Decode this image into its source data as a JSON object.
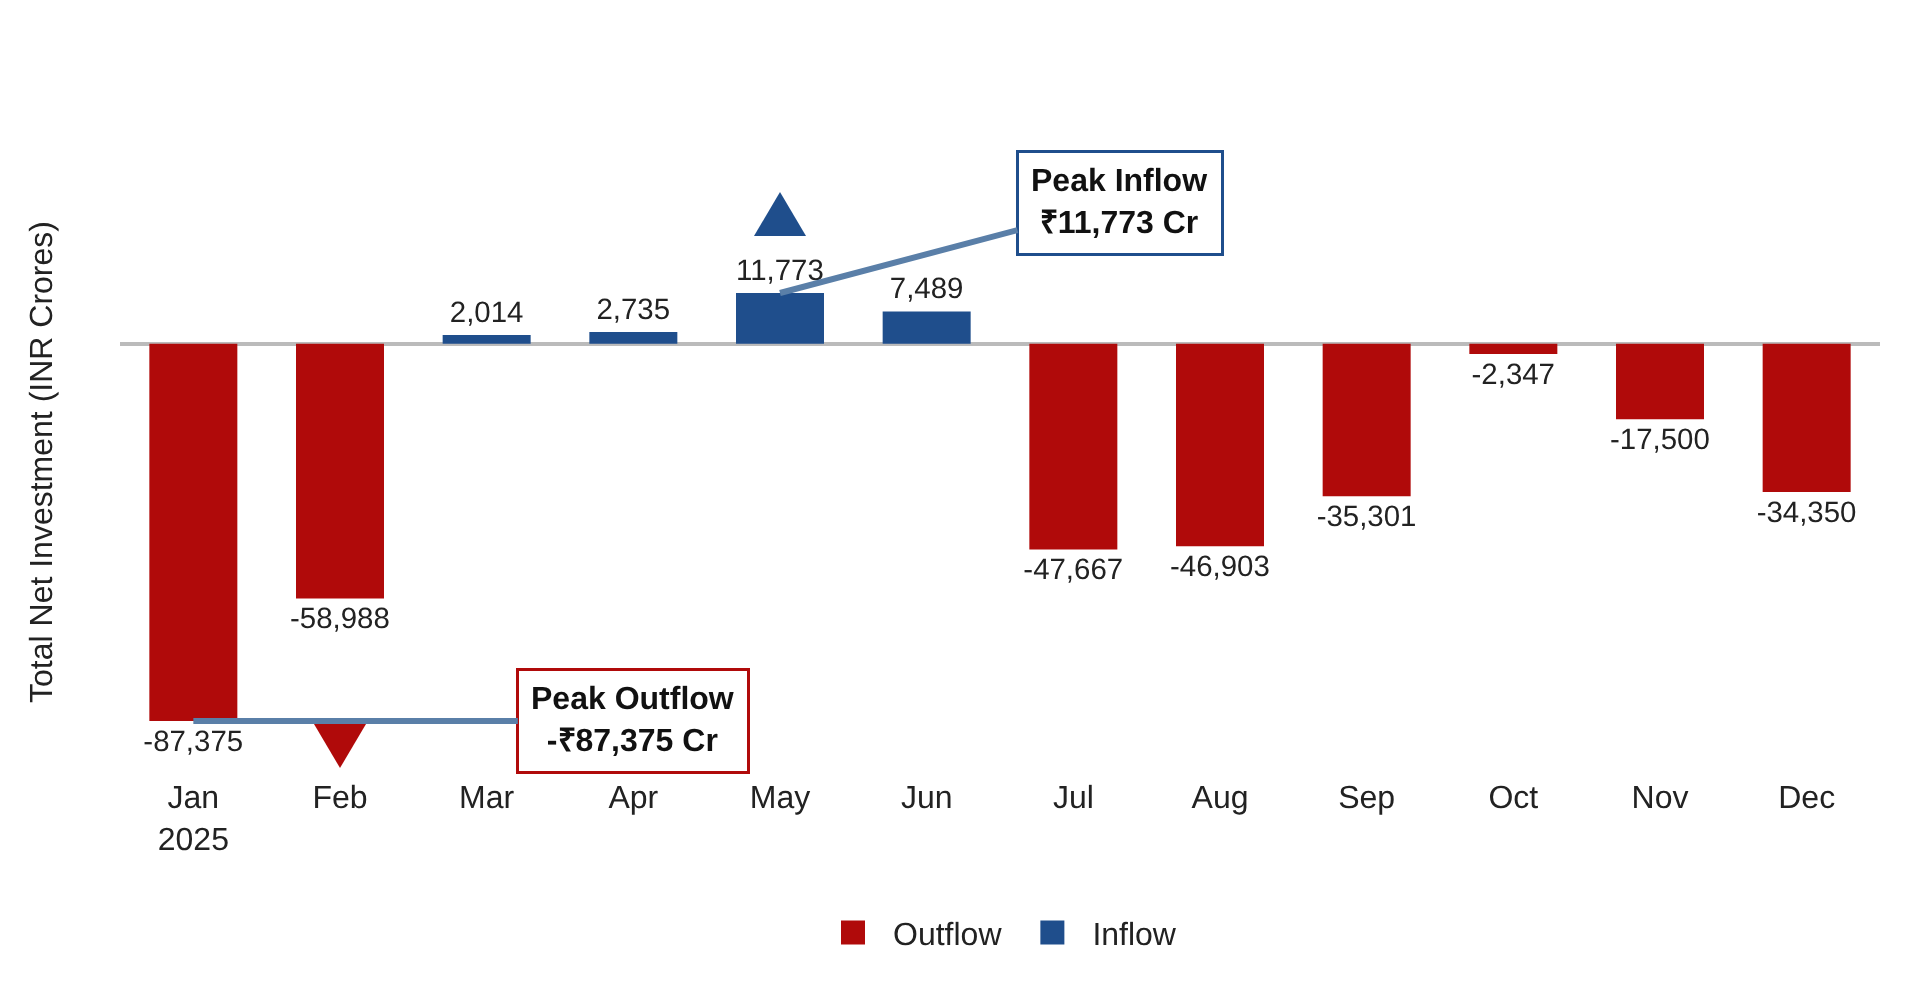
{
  "chart_data": {
    "type": "bar",
    "ylabel": "Total Net Investment (INR Crores)",
    "categories": [
      "Jan\n2025",
      "Feb",
      "Mar",
      "Apr",
      "May",
      "Jun",
      "Jul",
      "Aug",
      "Sep",
      "Oct",
      "Nov",
      "Dec"
    ],
    "series": [
      {
        "name": "Outflow",
        "color": "#b00a0a",
        "values": [
          -87375,
          -58988,
          null,
          null,
          null,
          null,
          -47667,
          -46903,
          -35301,
          -2347,
          -17500,
          -34350
        ],
        "value_labels": [
          "-87,375",
          "-58,988",
          null,
          null,
          null,
          null,
          "-47,667",
          "-46,903",
          "-35,301",
          "-2,347",
          "-17,500",
          "-34,350"
        ]
      },
      {
        "name": "Inflow",
        "color": "#1f4e8c",
        "values": [
          null,
          null,
          2014,
          2735,
          11773,
          7489,
          null,
          null,
          null,
          null,
          null,
          null
        ],
        "value_labels": [
          null,
          null,
          "2,014",
          "2,735",
          "11,773",
          "7,489",
          null,
          null,
          null,
          null,
          null,
          null
        ]
      }
    ],
    "tick_labels": "x",
    "grid": false,
    "legend": "bottom",
    "annotations": [
      {
        "text": "Peak Inflow\n₹11,773 Cr",
        "x": "May",
        "y": 11773
      },
      {
        "text": "Peak Outflow\n-₹87,375 Cr",
        "x": "Jan\n2025",
        "y": -87375
      }
    ]
  }
}
